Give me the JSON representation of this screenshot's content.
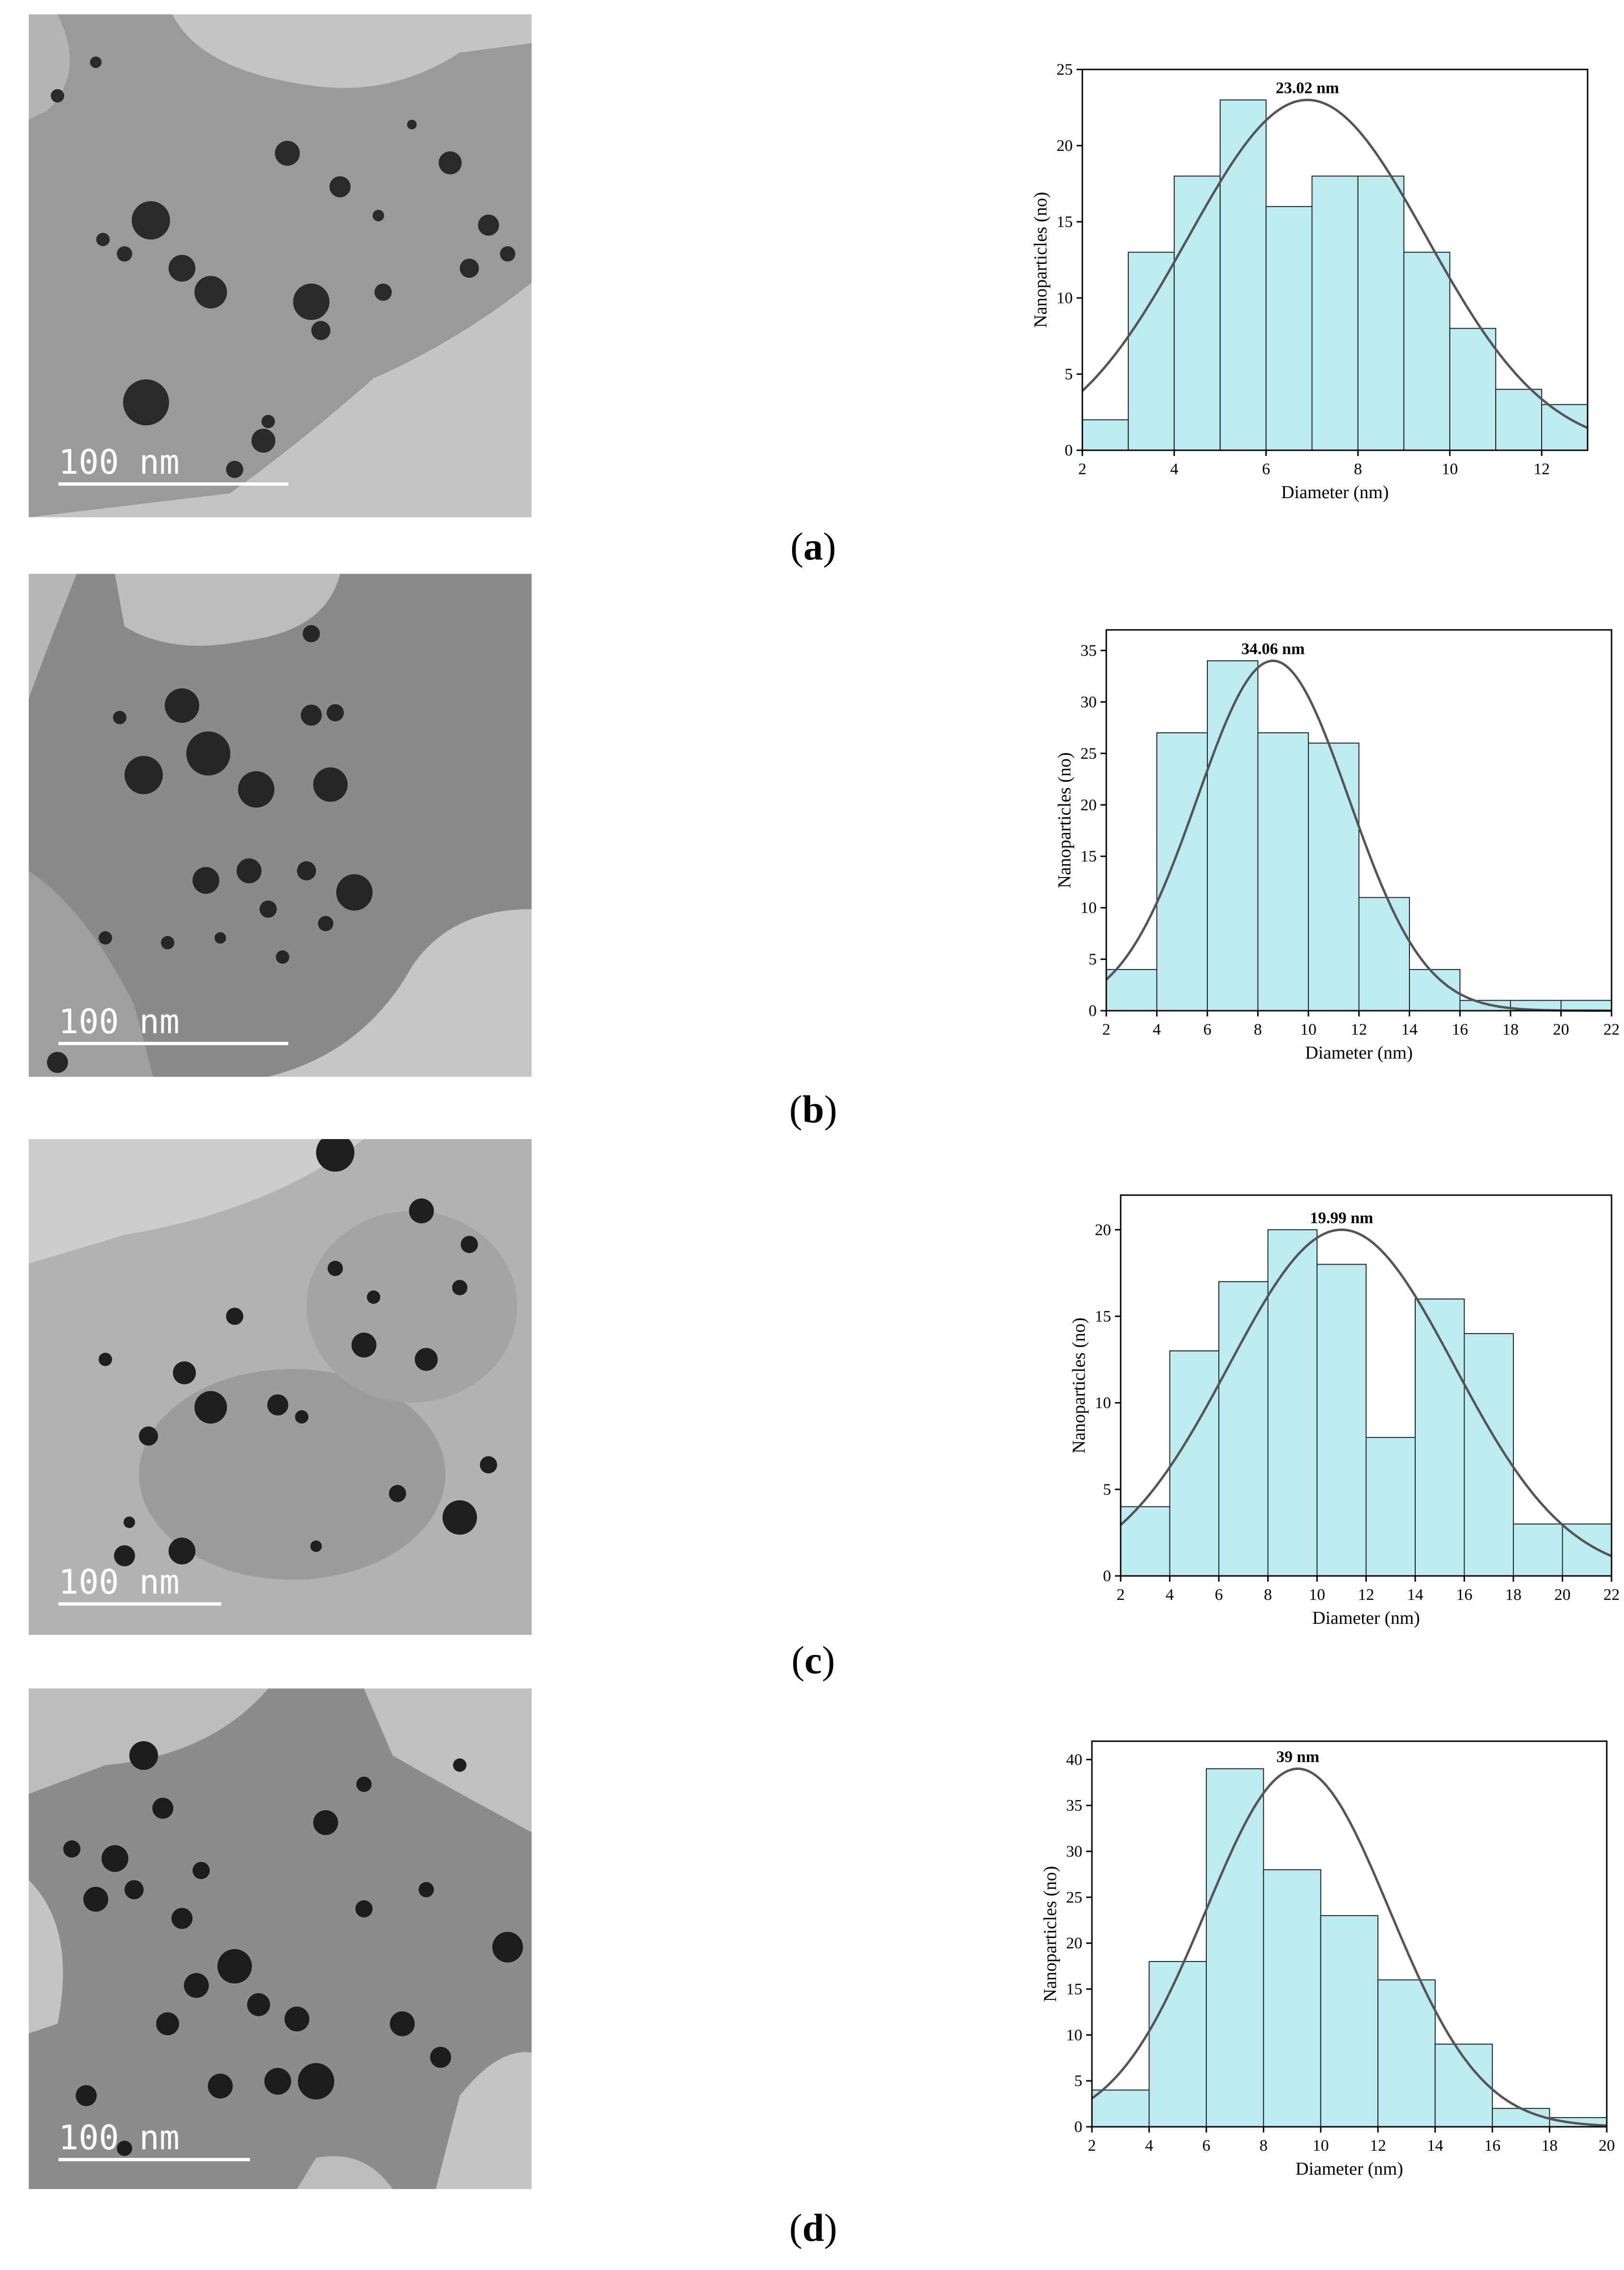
{
  "figure": {
    "panels": [
      {
        "id": "a",
        "caption_open": "(",
        "caption_label": "a",
        "caption_close": ")",
        "tem": {
          "scale_label": "100 nm",
          "tone": "#a7a7a7"
        }
      },
      {
        "id": "b",
        "caption_open": "(",
        "caption_label": "b",
        "caption_close": ")",
        "tem": {
          "scale_label": "100 nm",
          "tone": "#9a9a9a"
        }
      },
      {
        "id": "c",
        "caption_open": "(",
        "caption_label": "c",
        "caption_close": ")",
        "tem": {
          "scale_label": "100 nm",
          "tone": "#9e9e9e"
        }
      },
      {
        "id": "d",
        "caption_open": "(",
        "caption_label": "d",
        "caption_close": ")",
        "tem": {
          "scale_label": "100 nm",
          "tone": "#8f8f8f"
        }
      }
    ]
  },
  "colors": {
    "bar_fill": "#bcecf0",
    "bar_stroke": "#222222",
    "curve": "#555555"
  },
  "chart_data": [
    {
      "type": "bar",
      "panel": "a",
      "title": "",
      "xlabel": "Diameter (nm)",
      "ylabel": "Nanoparticles (no)",
      "annotation": "23.02 nm",
      "xlim": [
        2,
        13
      ],
      "ylim": [
        0,
        25
      ],
      "xticks": [
        2,
        4,
        6,
        8,
        10,
        12
      ],
      "yticks": [
        0,
        5,
        10,
        15,
        20,
        25
      ],
      "bin_edges": [
        2,
        3,
        4,
        5,
        6,
        7,
        8,
        9,
        10,
        11,
        12,
        13
      ],
      "values": [
        2,
        13,
        18,
        23,
        16,
        18,
        18,
        13,
        8,
        4,
        3
      ],
      "fit": {
        "type": "normal",
        "mean": 6.9,
        "sd": 2.6,
        "peak": 23
      }
    },
    {
      "type": "bar",
      "panel": "b",
      "title": "",
      "xlabel": "Diameter (nm)",
      "ylabel": "Nanoparticles (no)",
      "annotation": "34.06 nm",
      "xlim": [
        2,
        22
      ],
      "ylim": [
        0,
        37
      ],
      "xticks": [
        2,
        4,
        6,
        8,
        10,
        12,
        14,
        16,
        18,
        20,
        22
      ],
      "yticks": [
        0,
        5,
        10,
        15,
        20,
        25,
        30,
        35
      ],
      "bin_edges": [
        2,
        4,
        6,
        8,
        10,
        12,
        14,
        16,
        18,
        20,
        22
      ],
      "values": [
        4,
        27,
        34,
        27,
        26,
        11,
        4,
        1,
        1,
        1
      ],
      "fit": {
        "type": "normal",
        "mean": 8.6,
        "sd": 3.0,
        "peak": 34
      }
    },
    {
      "type": "bar",
      "panel": "c",
      "title": "",
      "xlabel": "Diameter (nm)",
      "ylabel": "Nanoparticles (no)",
      "annotation": "19.99 nm",
      "xlim": [
        2,
        22
      ],
      "ylim": [
        0,
        22
      ],
      "xticks": [
        2,
        4,
        6,
        8,
        10,
        12,
        14,
        16,
        18,
        20,
        22
      ],
      "yticks": [
        0,
        5,
        10,
        15,
        20
      ],
      "bin_edges": [
        2,
        4,
        6,
        8,
        10,
        12,
        14,
        16,
        18,
        20,
        22
      ],
      "values": [
        4,
        13,
        17,
        20,
        18,
        8,
        16,
        14,
        3,
        3
      ],
      "fit": {
        "type": "normal",
        "mean": 11.0,
        "sd": 4.6,
        "peak": 20
      }
    },
    {
      "type": "bar",
      "panel": "d",
      "title": "",
      "xlabel": "Diameter (nm)",
      "ylabel": "Nanoparticles (no)",
      "annotation": "39 nm",
      "xlim": [
        2,
        20
      ],
      "ylim": [
        0,
        42
      ],
      "xticks": [
        2,
        4,
        6,
        8,
        10,
        12,
        14,
        16,
        18,
        20
      ],
      "yticks": [
        0,
        5,
        10,
        15,
        20,
        25,
        30,
        35,
        40
      ],
      "bin_edges": [
        2,
        4,
        6,
        8,
        10,
        12,
        14,
        16,
        18,
        20
      ],
      "values": [
        4,
        18,
        39,
        28,
        23,
        16,
        9,
        2,
        1
      ],
      "fit": {
        "type": "normal",
        "mean": 9.2,
        "sd": 3.2,
        "peak": 39
      }
    }
  ]
}
